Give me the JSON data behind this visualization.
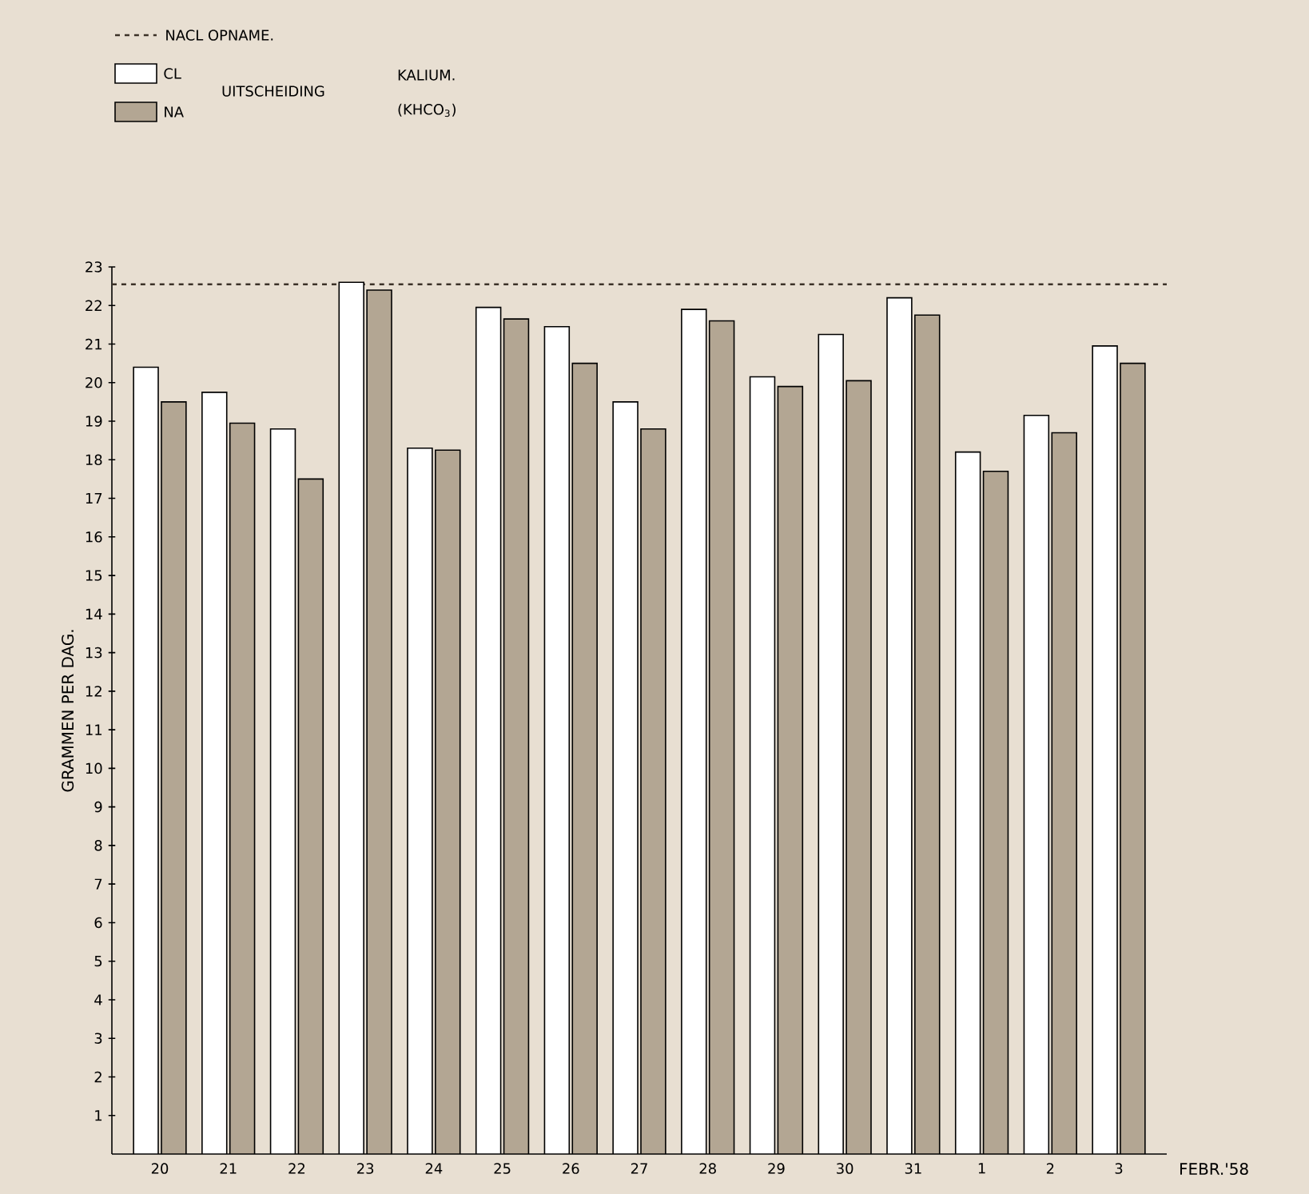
{
  "chart_data": {
    "type": "bar",
    "ylabel": "GRAMMEN PER DAG.",
    "xlabel": "FEBR.'58",
    "categories": [
      "20",
      "21",
      "22",
      "23",
      "24",
      "25",
      "26",
      "27",
      "28",
      "29",
      "30",
      "31",
      "1",
      "2",
      "3"
    ],
    "series": [
      {
        "name": "CL",
        "color": "#ffffff",
        "values": [
          20.4,
          19.75,
          18.8,
          22.6,
          18.3,
          21.95,
          21.45,
          19.5,
          21.9,
          20.15,
          21.25,
          22.2,
          18.2,
          19.15,
          20.95
        ]
      },
      {
        "name": "NA",
        "color": "#b3a693",
        "values": [
          19.5,
          18.95,
          17.5,
          22.4,
          18.25,
          21.65,
          20.5,
          18.8,
          21.6,
          19.9,
          20.05,
          21.75,
          17.7,
          18.7,
          20.5
        ]
      }
    ],
    "ylim": [
      0,
      23
    ],
    "yticks": [
      1,
      2,
      3,
      4,
      5,
      6,
      7,
      8,
      9,
      10,
      11,
      12,
      13,
      14,
      15,
      16,
      17,
      18,
      19,
      20,
      21,
      22,
      23
    ],
    "ref_lines": [
      {
        "axis": "y",
        "value": 22.55,
        "label": "NACL OPNAME.",
        "line_style": "dashed",
        "color": "#3c3228"
      }
    ],
    "legend": "top left",
    "annotations": [
      "UITSCHEIDING",
      "KALIUM.",
      "(KHCO$_{3}$)"
    ]
  }
}
